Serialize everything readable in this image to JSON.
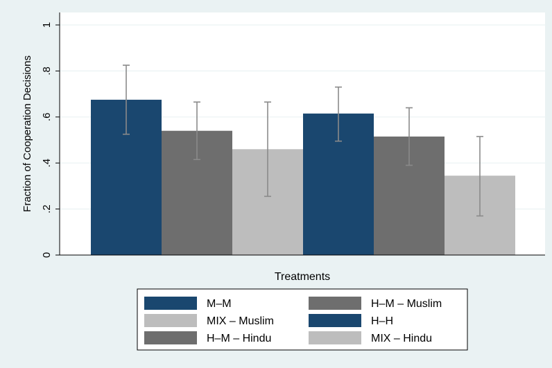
{
  "chart_data": {
    "type": "bar",
    "title": "",
    "xlabel": "Treatments",
    "ylabel": "Fraction of Cooperation Decisions",
    "ylim": [
      0,
      1
    ],
    "yticks": [
      0,
      0.2,
      0.4,
      0.6,
      0.8,
      1
    ],
    "ytick_labels": [
      "0",
      ".2",
      ".4",
      ".6",
      ".8",
      "1"
    ],
    "grid": true,
    "legend_position": "bottom",
    "bars": [
      {
        "label": "M–M",
        "value": 0.675,
        "ci": [
          0.525,
          0.825
        ],
        "color": "#1a476f"
      },
      {
        "label": "H–M – Muslim",
        "value": 0.54,
        "ci": [
          0.415,
          0.665
        ],
        "color": "#6e6e6e"
      },
      {
        "label": "MIX – Muslim",
        "value": 0.46,
        "ci": [
          0.255,
          0.665
        ],
        "color": "#bdbdbd"
      },
      {
        "label": "H–H",
        "value": 0.615,
        "ci": [
          0.495,
          0.73
        ],
        "color": "#1a476f"
      },
      {
        "label": "H–M – Hindu",
        "value": 0.515,
        "ci": [
          0.39,
          0.64
        ],
        "color": "#6e6e6e"
      },
      {
        "label": "MIX – Hindu",
        "value": 0.345,
        "ci": [
          0.17,
          0.515
        ],
        "color": "#bdbdbd"
      }
    ]
  },
  "legend_items": [
    {
      "label": "M–M",
      "color": "#1a476f"
    },
    {
      "label": "H–M – Muslim",
      "color": "#6e6e6e"
    },
    {
      "label": "MIX – Muslim",
      "color": "#bdbdbd"
    },
    {
      "label": "H–H",
      "color": "#1a476f"
    },
    {
      "label": "H–M – Hindu",
      "color": "#6e6e6e"
    },
    {
      "label": "MIX – Hindu",
      "color": "#bdbdbd"
    }
  ],
  "colors": {
    "background": "#eaf2f3",
    "plot_area": "#ffffff",
    "gridline": "#eaf2f3",
    "error_bar": "#8a8a8a"
  }
}
